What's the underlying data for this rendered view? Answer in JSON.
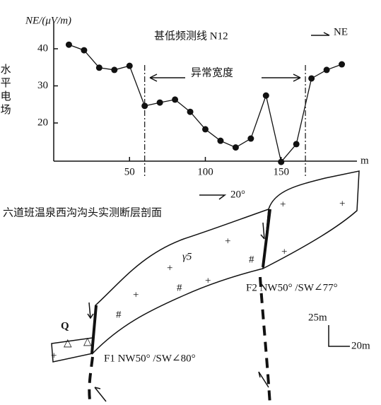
{
  "chart_data": {
    "type": "line",
    "title": "甚低频测线 N12",
    "direction_label": "NE",
    "y_axis_unit": "NE/(μV/m)",
    "y_axis_label": "水平电场",
    "x_axis_label": "m",
    "annotation": "异常宽度",
    "anomaly_bounds": [
      60,
      166
    ],
    "x": [
      10,
      20,
      30,
      40,
      50,
      60,
      70,
      80,
      90,
      100,
      110,
      120,
      130,
      140,
      150,
      160,
      170,
      180,
      190
    ],
    "series": [
      {
        "color": "#111111",
        "values": [
          41.1,
          39.6,
          34.9,
          34.3,
          35.4,
          24.6,
          25.5,
          26.3,
          23.0,
          18.3,
          15.2,
          13.4,
          15.8,
          27.4,
          9.5,
          14.3,
          32.0,
          34.3,
          35.8
        ]
      }
    ],
    "xlim": [
      0,
      200
    ],
    "xticks": [
      50,
      100,
      150
    ],
    "ylim": [
      9.5,
      47
    ],
    "yticks": [
      20,
      30,
      40
    ]
  },
  "section": {
    "title": "六道班温泉西沟沟头实测断层剖面",
    "strike_label": "20°",
    "rock_label": "γ5",
    "quaternary_label": "Q",
    "fault1_label": "F1 NW50° /SW∠80°",
    "fault2_label": "F2 NW50° /SW∠77°",
    "scale_vertical": "25m",
    "scale_horizontal": "20m"
  }
}
